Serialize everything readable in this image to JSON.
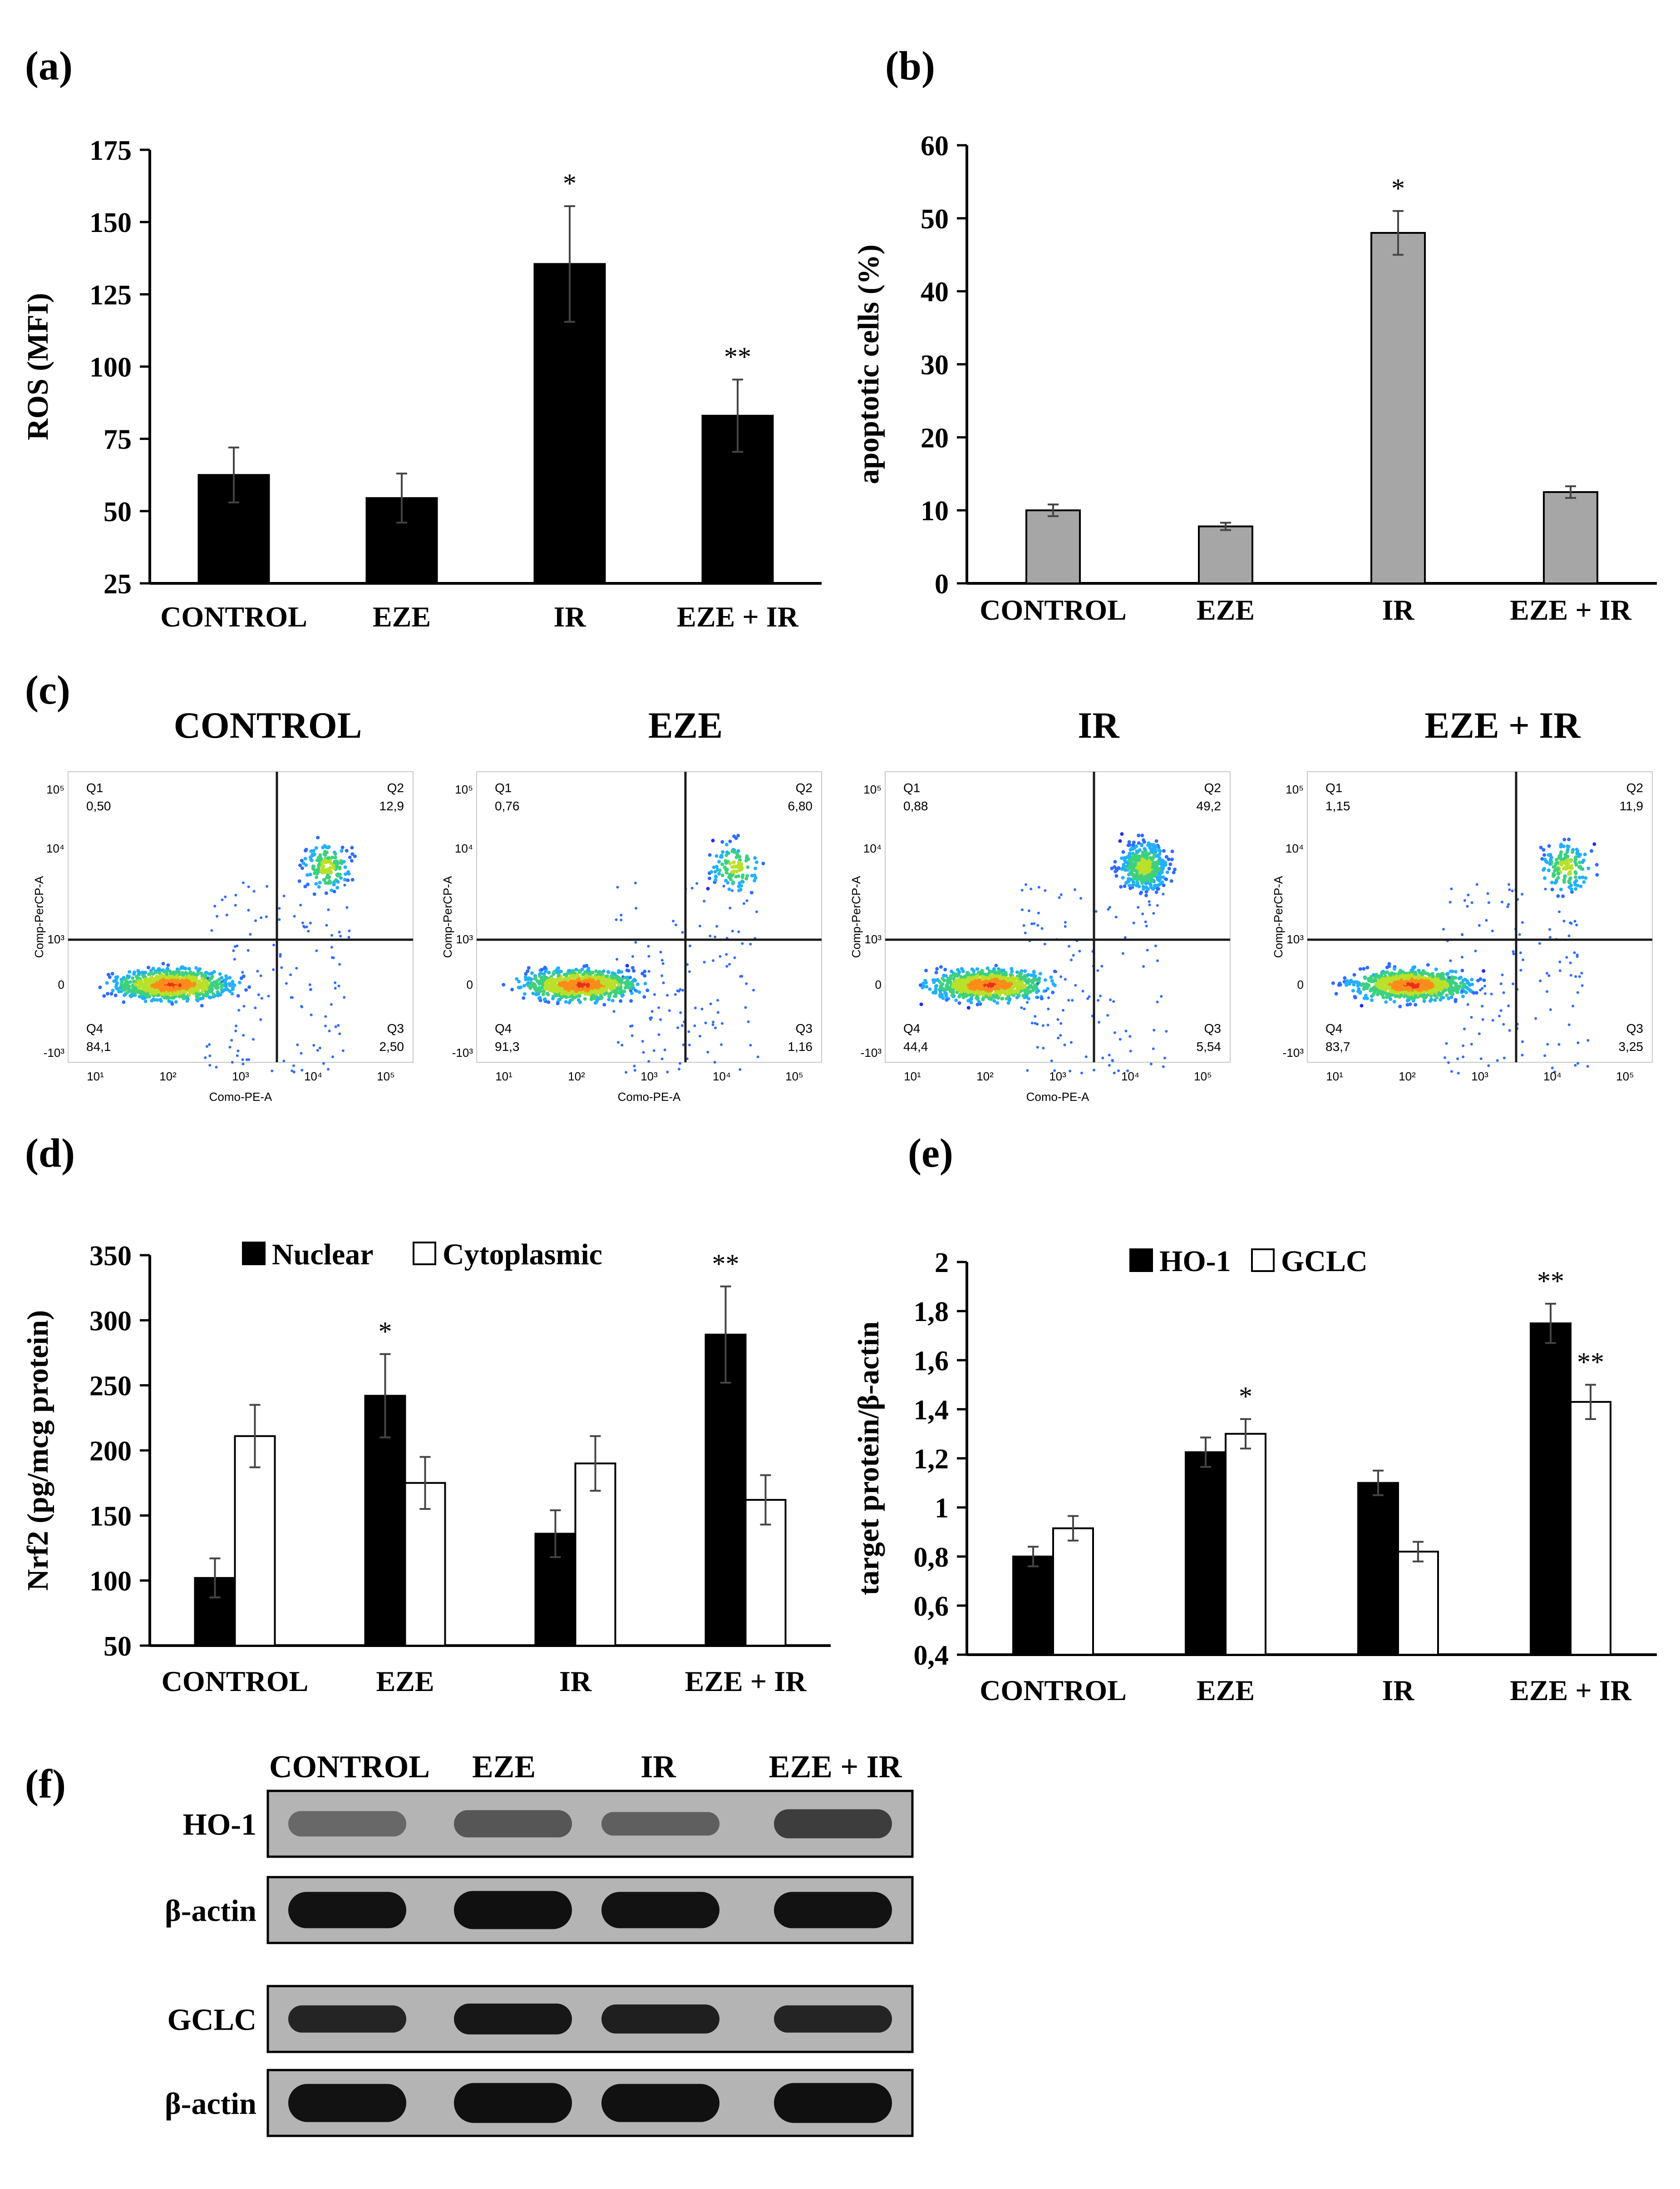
{
  "panels": {
    "a": {
      "letter": "(a)"
    },
    "b": {
      "letter": "(b)"
    },
    "c": {
      "letter": "(c)"
    },
    "d": {
      "letter": "(d)"
    },
    "e": {
      "letter": "(e)"
    },
    "f": {
      "letter": "(f)"
    }
  },
  "colors": {
    "black_bar": "#000000",
    "gray_bar": "#a6a6a6",
    "white_bar": "#ffffff",
    "quadrant_line": "#1a1a1a"
  },
  "chart_data": [
    {
      "id": "a",
      "type": "bar",
      "ylabel": "ROS (MFI)",
      "categories": [
        "CONTROL",
        "EZE",
        "IR",
        "EZE + IR"
      ],
      "ylim": [
        25,
        175
      ],
      "yticks": [
        25,
        50,
        75,
        100,
        125,
        150,
        175
      ],
      "ytick_labels": [
        "25",
        "50",
        "75",
        "100",
        "125",
        "150",
        "175"
      ],
      "series": [
        {
          "name": "ROS",
          "color": "#000000",
          "values": [
            62.5,
            54.5,
            135.5,
            83
          ],
          "errors": [
            9.5,
            8.5,
            20,
            12.5
          ],
          "annotations": [
            "",
            "",
            "*",
            "**"
          ]
        }
      ]
    },
    {
      "id": "b",
      "type": "bar",
      "ylabel": "apoptotic cells (%)",
      "categories": [
        "CONTROL",
        "EZE",
        "IR",
        "EZE + IR"
      ],
      "ylim": [
        0,
        60
      ],
      "yticks": [
        0,
        10,
        20,
        30,
        40,
        50,
        60
      ],
      "ytick_labels": [
        "0",
        "10",
        "20",
        "30",
        "40",
        "50",
        "60"
      ],
      "series": [
        {
          "name": "apoptotic cells",
          "color": "#a6a6a6",
          "values": [
            10,
            7.8,
            48,
            12.5
          ],
          "errors": [
            0.8,
            0.5,
            3,
            0.8
          ],
          "annotations": [
            "",
            "",
            "*",
            ""
          ]
        }
      ]
    },
    {
      "id": "d",
      "type": "bar",
      "ylabel": "Nrf2 (pg/mcg protein)",
      "categories": [
        "CONTROL",
        "EZE",
        "IR",
        "EZE + IR"
      ],
      "ylim": [
        50,
        350
      ],
      "yticks": [
        50,
        100,
        150,
        200,
        250,
        300,
        350
      ],
      "ytick_labels": [
        "50",
        "100",
        "150",
        "200",
        "250",
        "300",
        "350"
      ],
      "legend": [
        "Nuclear",
        "Cytoplasmic"
      ],
      "series": [
        {
          "name": "Nuclear",
          "color": "#000000",
          "values": [
            102,
            242,
            136,
            289
          ],
          "errors": [
            15,
            32,
            18,
            37
          ],
          "annotations": [
            "",
            "*",
            "",
            "**"
          ]
        },
        {
          "name": "Cytoplasmic",
          "color": "#ffffff",
          "values": [
            211,
            175,
            190,
            162
          ],
          "errors": [
            24,
            20,
            21,
            19
          ],
          "annotations": [
            "",
            "",
            "",
            ""
          ]
        }
      ]
    },
    {
      "id": "e",
      "type": "bar",
      "ylabel": "target protein/β-actin",
      "categories": [
        "CONTROL",
        "EZE",
        "IR",
        "EZE + IR"
      ],
      "ylim": [
        0.4,
        2
      ],
      "yticks": [
        0.4,
        0.6,
        0.8,
        1.0,
        1.2,
        1.4,
        1.6,
        1.8,
        2.0
      ],
      "ytick_labels": [
        "0,4",
        "0,6",
        "0,8",
        "1",
        "1,2",
        "1,4",
        "1,6",
        "1,8",
        "2"
      ],
      "legend": [
        "HO-1",
        "GCLC"
      ],
      "series": [
        {
          "name": "HO-1",
          "color": "#000000",
          "values": [
            0.8,
            1.225,
            1.1,
            1.75
          ],
          "errors": [
            0.04,
            0.06,
            0.05,
            0.08
          ],
          "annotations": [
            "",
            "",
            "",
            "**"
          ]
        },
        {
          "name": "GCLC",
          "color": "#ffffff",
          "values": [
            0.915,
            1.3,
            0.82,
            1.43
          ],
          "errors": [
            0.05,
            0.06,
            0.04,
            0.07
          ],
          "annotations": [
            "",
            "*",
            "",
            "**"
          ]
        }
      ]
    },
    {
      "id": "c",
      "type": "scatter",
      "xlabel": "Como-PE-A",
      "ylabel": "Comp-PerCP-A",
      "tick_labels": [
        "10⁵",
        "10⁴",
        "10³",
        "0",
        "-10³",
        "10¹",
        "10²",
        "10³",
        "10⁴",
        "10⁵"
      ],
      "plots": [
        {
          "title": "CONTROL",
          "xlabel": "Como-PE-A",
          "quadrants": {
            "Q1": "0,50",
            "Q2": "12,9",
            "Q3": "2,50",
            "Q4": "84,1"
          }
        },
        {
          "title": "EZE",
          "xlabel": "Como-PE-A",
          "quadrants": {
            "Q1": "0,76",
            "Q2": "6,80",
            "Q3": "1,16",
            "Q4": "91,3"
          }
        },
        {
          "title": "IR",
          "xlabel": "Como-PE-A",
          "quadrants": {
            "Q1": "0,88",
            "Q2": "49,2",
            "Q3": "5,54",
            "Q4": "44,4"
          }
        },
        {
          "title": "EZE + IR",
          "xlabel": "",
          "quadrants": {
            "Q1": "1,15",
            "Q2": "11,9",
            "Q3": "3,25",
            "Q4": "83,7"
          }
        }
      ]
    }
  ],
  "western_blot": {
    "lanes": [
      "CONTROL",
      "EZE",
      "IR",
      "EZE + IR"
    ],
    "rows": [
      "HO-1",
      "β-actin",
      "GCLC",
      "β-actin"
    ]
  }
}
